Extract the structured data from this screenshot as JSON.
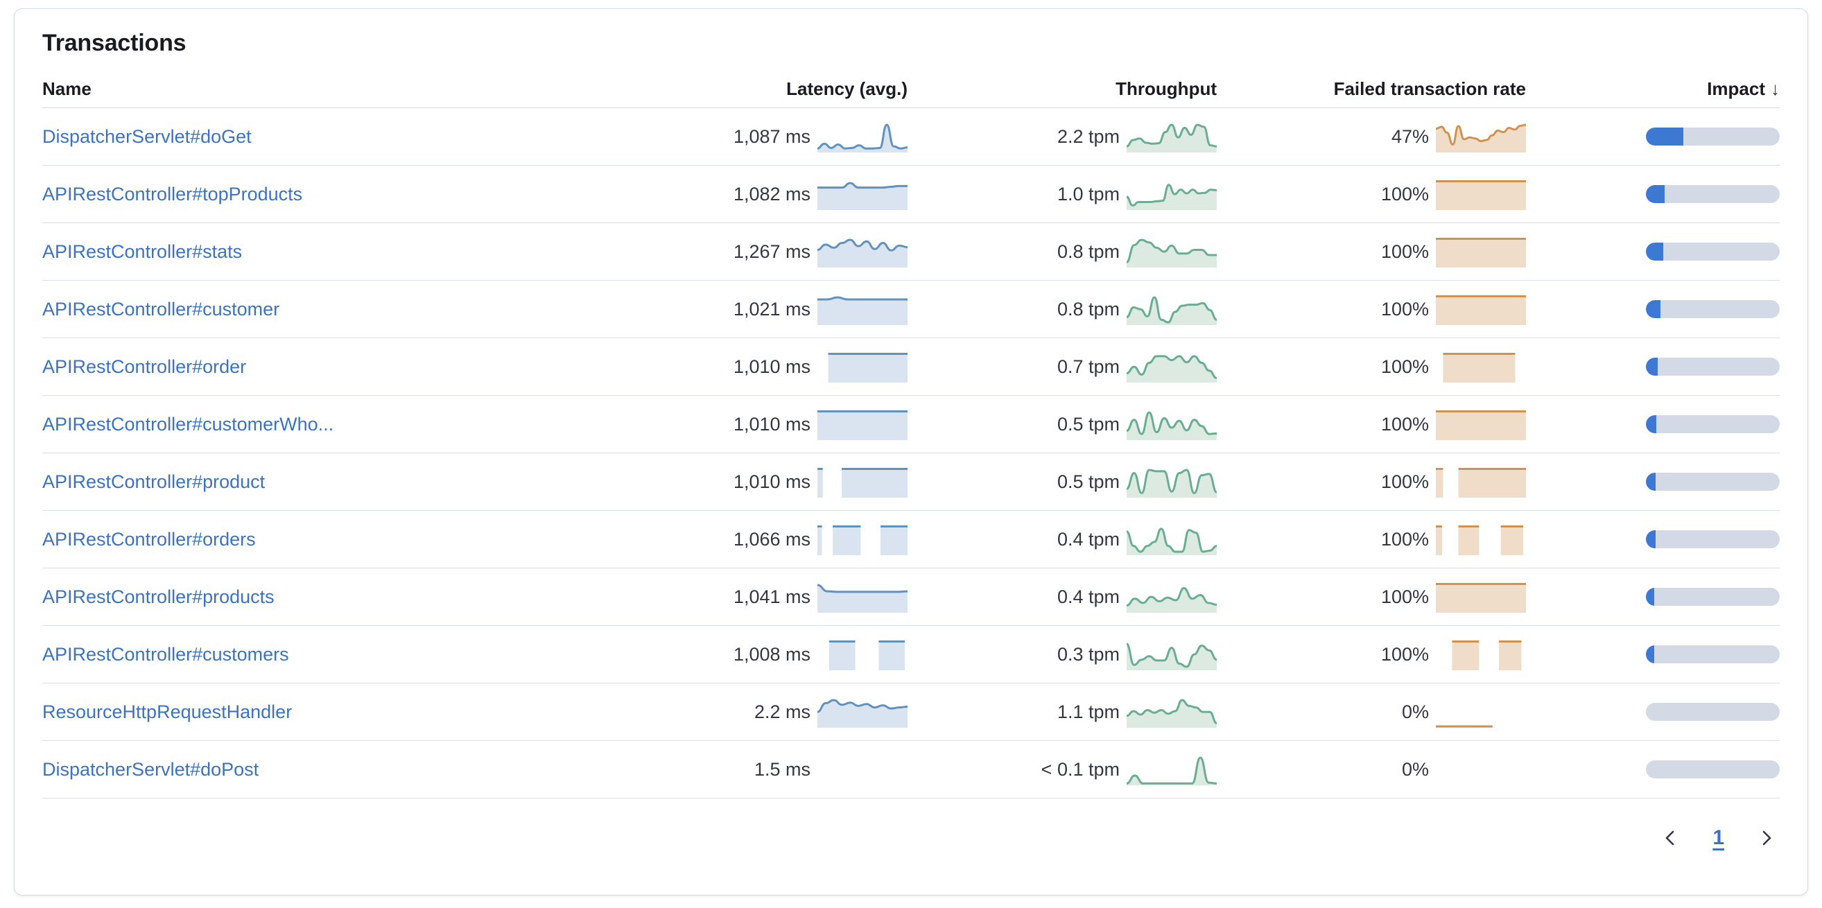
{
  "header": {
    "title": "Transactions"
  },
  "table": {
    "columns": {
      "name": "Name",
      "latency": "Latency (avg.)",
      "throughput": "Throughput",
      "failed": "Failed transaction rate",
      "impact": "Impact"
    },
    "sort_indicator": "↓",
    "rows": [
      {
        "name": "DispatcherServlet#doGet",
        "latency": "1,087 ms",
        "latency_spark": {
          "type": "line",
          "points": [
            0.1,
            0.28,
            0.12,
            0.25,
            0.1,
            0.12,
            0.22,
            0.1,
            0.1,
            0.12,
            1.0,
            0.18,
            0.1,
            0.14
          ]
        },
        "throughput": "2.2 tpm",
        "throughput_spark": {
          "type": "line",
          "points": [
            0.18,
            0.42,
            0.48,
            0.32,
            0.28,
            0.3,
            0.72,
            1.0,
            0.52,
            0.88,
            0.62,
            1.0,
            0.92,
            0.22,
            0.18
          ]
        },
        "failed": "47%",
        "failed_spark": {
          "type": "line",
          "points": [
            0.85,
            0.92,
            0.7,
            0.25,
            0.95,
            0.45,
            0.52,
            0.48,
            0.38,
            0.42,
            0.6,
            0.78,
            0.72,
            0.88,
            0.82,
            0.96,
            1.0
          ]
        },
        "impact_pct": 28
      },
      {
        "name": "APIRestController#topProducts",
        "latency": "1,082 ms",
        "latency_spark": {
          "type": "line",
          "points": [
            0.8,
            0.8,
            0.8,
            0.8,
            0.97,
            0.8,
            0.8,
            0.8,
            0.8,
            0.83,
            0.86,
            0.86
          ]
        },
        "throughput": "1.0 tpm",
        "throughput_spark": {
          "type": "line",
          "points": [
            0.45,
            0.12,
            0.25,
            0.25,
            0.25,
            0.28,
            0.3,
            0.9,
            0.55,
            0.72,
            0.58,
            0.72,
            0.58,
            0.6,
            0.72,
            0.7
          ]
        },
        "failed": "100%",
        "failed_spark": {
          "type": "blocks",
          "segments": [
            [
              0,
              1
            ]
          ]
        },
        "impact_pct": 14
      },
      {
        "name": "APIRestController#stats",
        "latency": "1,267 ms",
        "latency_spark": {
          "type": "line",
          "points": [
            0.62,
            0.82,
            0.7,
            0.88,
            1.0,
            0.76,
            0.94,
            0.65,
            0.88,
            0.6,
            0.78,
            0.72
          ]
        },
        "throughput": "0.8 tpm",
        "throughput_spark": {
          "type": "line",
          "points": [
            0.15,
            0.8,
            1.0,
            0.9,
            0.7,
            0.55,
            0.78,
            0.48,
            0.48,
            0.62,
            0.62,
            0.42,
            0.42
          ]
        },
        "failed": "100%",
        "failed_spark": {
          "type": "blocks",
          "segments": [
            [
              0,
              1
            ]
          ]
        },
        "impact_pct": 13
      },
      {
        "name": "APIRestController#customer",
        "latency": "1,021 ms",
        "latency_spark": {
          "type": "line",
          "points": [
            0.92,
            0.92,
            1.0,
            0.92,
            0.92,
            0.92,
            0.92,
            0.92,
            0.92,
            0.92
          ]
        },
        "throughput": "0.8 tpm",
        "throughput_spark": {
          "type": "line",
          "points": [
            0.25,
            0.62,
            0.55,
            0.28,
            1.0,
            0.15,
            0.05,
            0.45,
            0.68,
            0.72,
            0.72,
            0.78,
            0.52,
            0.15
          ]
        },
        "failed": "100%",
        "failed_spark": {
          "type": "blocks",
          "segments": [
            [
              0,
              1
            ]
          ]
        },
        "impact_pct": 11
      },
      {
        "name": "APIRestController#order",
        "latency": "1,010 ms",
        "latency_spark": {
          "type": "blocks",
          "segments": [
            [
              0.12,
              1
            ]
          ]
        },
        "throughput": "0.7 tpm",
        "throughput_spark": {
          "type": "line",
          "points": [
            0.3,
            0.55,
            0.25,
            0.7,
            0.95,
            0.95,
            0.8,
            0.95,
            0.72,
            0.95,
            0.7,
            0.4,
            0.12
          ]
        },
        "failed": "100%",
        "failed_spark": {
          "type": "blocks",
          "segments": [
            [
              0.08,
              0.88
            ]
          ]
        },
        "impact_pct": 9
      },
      {
        "name": "APIRestController#customerWho...",
        "latency": "1,010 ms",
        "latency_spark": {
          "type": "blocks",
          "segments": [
            [
              0,
              1
            ]
          ]
        },
        "throughput": "0.5 tpm",
        "throughput_spark": {
          "type": "line",
          "points": [
            0.3,
            0.72,
            0.18,
            1.0,
            0.25,
            0.78,
            0.42,
            0.68,
            0.32,
            0.72,
            0.48,
            0.18,
            0.2
          ]
        },
        "failed": "100%",
        "failed_spark": {
          "type": "blocks",
          "segments": [
            [
              0,
              1
            ]
          ]
        },
        "impact_pct": 8
      },
      {
        "name": "APIRestController#product",
        "latency": "1,010 ms",
        "latency_spark": {
          "type": "blocks",
          "segments": [
            [
              0,
              0.06
            ],
            [
              0.27,
              1
            ]
          ]
        },
        "throughput": "0.5 tpm",
        "throughput_spark": {
          "type": "line",
          "points": [
            0.28,
            0.88,
            0.12,
            1.0,
            0.95,
            0.95,
            0.18,
            0.88,
            1.0,
            0.12,
            0.8,
            0.85,
            0.15
          ]
        },
        "failed": "100%",
        "failed_spark": {
          "type": "blocks",
          "segments": [
            [
              0,
              0.08
            ],
            [
              0.25,
              1
            ]
          ]
        },
        "impact_pct": 7
      },
      {
        "name": "APIRestController#orders",
        "latency": "1,066 ms",
        "latency_spark": {
          "type": "blocks",
          "segments": [
            [
              0,
              0.05
            ],
            [
              0.17,
              0.48
            ],
            [
              0.7,
              1
            ]
          ]
        },
        "throughput": "0.4 tpm",
        "throughput_spark": {
          "type": "line",
          "points": [
            0.85,
            0.3,
            0.08,
            0.3,
            0.45,
            0.95,
            0.3,
            0.08,
            0.08,
            0.9,
            0.8,
            0.08,
            0.12,
            0.3
          ]
        },
        "failed": "100%",
        "failed_spark": {
          "type": "blocks",
          "segments": [
            [
              0,
              0.07
            ],
            [
              0.25,
              0.48
            ],
            [
              0.72,
              0.97
            ]
          ]
        },
        "impact_pct": 7
      },
      {
        "name": "APIRestController#products",
        "latency": "1,041 ms",
        "latency_spark": {
          "type": "line",
          "points": [
            1.0,
            0.76,
            0.74,
            0.74,
            0.74,
            0.74,
            0.74,
            0.74,
            0.74,
            0.76
          ]
        },
        "throughput": "0.4 tpm",
        "throughput_spark": {
          "type": "line",
          "points": [
            0.22,
            0.48,
            0.32,
            0.55,
            0.38,
            0.52,
            0.42,
            0.88,
            0.48,
            0.62,
            0.32,
            0.25
          ]
        },
        "failed": "100%",
        "failed_spark": {
          "type": "blocks",
          "segments": [
            [
              0,
              1
            ]
          ]
        },
        "impact_pct": 6
      },
      {
        "name": "APIRestController#customers",
        "latency": "1,008 ms",
        "latency_spark": {
          "type": "blocks",
          "segments": [
            [
              0.13,
              0.42
            ],
            [
              0.68,
              0.97
            ]
          ]
        },
        "throughput": "0.3 tpm",
        "throughput_spark": {
          "type": "line",
          "points": [
            0.95,
            0.15,
            0.35,
            0.48,
            0.32,
            0.32,
            0.8,
            0.2,
            0.08,
            0.55,
            0.88,
            0.7,
            0.35
          ]
        },
        "failed": "100%",
        "failed_spark": {
          "type": "blocks",
          "segments": [
            [
              0.18,
              0.48
            ],
            [
              0.7,
              0.95
            ]
          ]
        },
        "impact_pct": 5
      },
      {
        "name": "ResourceHttpRequestHandler",
        "latency": "2.2 ms",
        "latency_spark": {
          "type": "line",
          "points": [
            0.55,
            0.88,
            1.0,
            0.82,
            0.9,
            0.78,
            0.85,
            0.72,
            0.8,
            0.68,
            0.72,
            0.75
          ]
        },
        "throughput": "1.1 tpm",
        "throughput_spark": {
          "type": "line",
          "points": [
            0.4,
            0.58,
            0.45,
            0.62,
            0.52,
            0.62,
            0.48,
            0.58,
            1.0,
            0.78,
            0.72,
            0.55,
            0.55,
            0.12
          ]
        },
        "failed": "0%",
        "failed_spark": {
          "type": "line",
          "points": [
            0,
            0
          ],
          "span": [
            0,
            0.62
          ]
        },
        "impact_pct": 0
      },
      {
        "name": "DispatcherServlet#doPost",
        "latency": "1.5 ms",
        "latency_spark": null,
        "throughput": "< 0.1 tpm",
        "throughput_spark": {
          "type": "line",
          "points": [
            0.02,
            0.32,
            0.02,
            0.02,
            0.02,
            0.02,
            0.02,
            0.02,
            0.02,
            1.0,
            0.05,
            0.02
          ]
        },
        "failed": "0%",
        "failed_spark": null,
        "impact_pct": 0
      }
    ]
  },
  "pagination": {
    "current_page": "1"
  },
  "colors": {
    "latency_line": "#6092C0",
    "latency_fill": "#DAE4F0",
    "throughput_line": "#69AE92",
    "throughput_fill": "#DCEAE2",
    "failed_line": "#D2924F",
    "failed_fill": "#F0DDC9",
    "impact_fill": "#3D79D3",
    "impact_track": "#D3DAE6",
    "link": "#3B73C4"
  }
}
